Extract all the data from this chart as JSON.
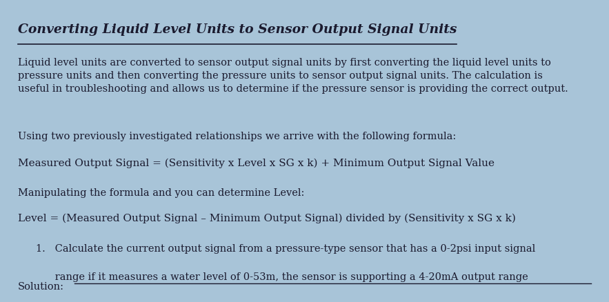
{
  "background_color": "#a8c4d8",
  "title": "Converting Liquid Level Units to Sensor Output Signal Units",
  "title_fontsize": 13.5,
  "title_color": "#1a1a2e",
  "body_color": "#1a1a2e",
  "body_fontsize": 10.5,
  "formula_fontsize": 11,
  "paragraph1": "Liquid level units are converted to sensor output signal units by first converting the liquid level units to\npressure units and then converting the pressure units to sensor output signal units. The calculation is\nuseful in troubleshooting and allows us to determine if the pressure sensor is providing the correct output.",
  "paragraph2": "Using two previously investigated relationships we arrive with the following formula:",
  "formula1": "Measured Output Signal = (Sensitivity x Level x SG x k) + Minimum Output Signal Value",
  "paragraph3": "Manipulating the formula and you can determine Level:",
  "formula2": "Level = (Measured Output Signal – Minimum Output Signal) divided by (Sensitivity x SG x k)",
  "list_item1": "1.   Calculate the current output signal from a pressure-type sensor that has a 0-2psi input signal",
  "list_item2": "      range if it measures a water level of 0-53m, the sensor is supporting a 4-20mA output range",
  "solution_label": "Solution:"
}
